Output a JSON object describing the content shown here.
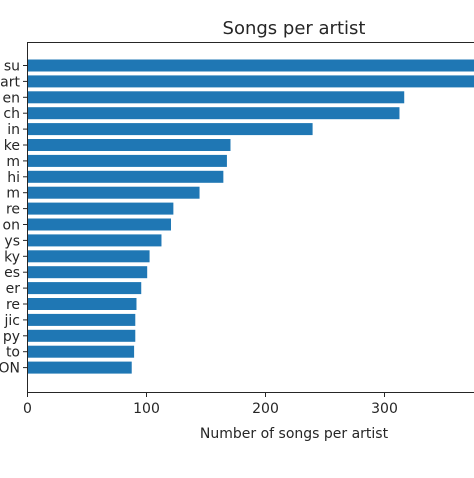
{
  "chart_data": {
    "type": "bar",
    "orientation": "horizontal",
    "title": "Songs per artist",
    "xlabel": "Number of songs per artist",
    "ylabel": "",
    "xlim": [
      0,
      375
    ],
    "xticks": [
      0,
      100,
      200,
      300
    ],
    "grid": false,
    "bar_color": "#1f77b4",
    "categories": [
      "su",
      "art",
      "en",
      "ch",
      "in",
      "ke",
      "m",
      "hi",
      "m",
      "re",
      "on",
      "ys",
      "ky",
      "es",
      "er",
      "re",
      "jic",
      "py",
      "to",
      "ON"
    ],
    "values": [
      380,
      380,
      317,
      313,
      240,
      171,
      168,
      165,
      145,
      123,
      121,
      113,
      103,
      101,
      96,
      92,
      91,
      91,
      90,
      88
    ]
  }
}
